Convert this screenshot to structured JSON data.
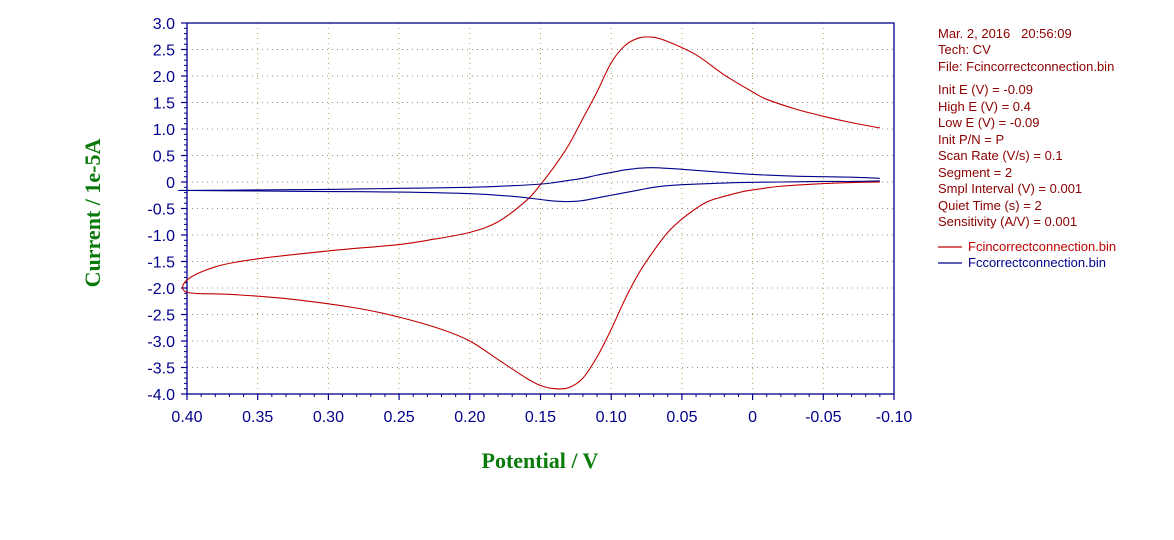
{
  "info": {
    "lines_top": [
      "Mar. 2, 2016   20:56:09",
      "Tech: CV",
      "File: Fcincorrectconnection.bin"
    ],
    "lines_params": [
      "Init E (V) = -0.09",
      "High E (V) = 0.4",
      "Low E (V) = -0.09",
      "Init P/N = P",
      "Scan Rate (V/s) = 0.1",
      "Segment = 2",
      "Smpl Interval (V) = 0.001",
      "Quiet Time (s) = 2",
      "Sensitivity (A/V) = 0.001"
    ]
  },
  "colors": {
    "axis": "#00008b",
    "grid": "#c8a060",
    "title": "#0a7a0a",
    "info": "#8b0000",
    "series_red": "#c00000",
    "series_blue": "#00008b"
  },
  "chart_data": {
    "type": "line",
    "xlabel": "Potential / V",
    "ylabel": "Current / 1e-5A",
    "xlim": [
      0.4,
      -0.1
    ],
    "ylim": [
      -4.0,
      3.0
    ],
    "x_inverted": true,
    "grid": true,
    "legend_position": "right",
    "x_ticks": [
      "0.40",
      "0.35",
      "0.30",
      "0.25",
      "0.20",
      "0.15",
      "0.10",
      "0.05",
      "0",
      "-0.05",
      "-0.10"
    ],
    "x_tick_values": [
      0.4,
      0.35,
      0.3,
      0.25,
      0.2,
      0.15,
      0.1,
      0.05,
      0,
      -0.05,
      -0.1
    ],
    "y_ticks": [
      "3.0",
      "2.5",
      "2.0",
      "1.5",
      "1.0",
      "0.5",
      "0",
      "-0.5",
      "-1.0",
      "-1.5",
      "-2.0",
      "-2.5",
      "-3.0",
      "-3.5",
      "-4.0"
    ],
    "y_tick_values": [
      3.0,
      2.5,
      2.0,
      1.5,
      1.0,
      0.5,
      0,
      -0.5,
      -1.0,
      -1.5,
      -2.0,
      -2.5,
      -3.0,
      -3.5,
      -4.0
    ],
    "series": [
      {
        "name": "Fcincorrectconnection.bin",
        "color": "#c00000",
        "points": [
          [
            -0.09,
            1.02
          ],
          [
            -0.07,
            1.12
          ],
          [
            -0.05,
            1.24
          ],
          [
            -0.03,
            1.38
          ],
          [
            -0.01,
            1.56
          ],
          [
            0.0,
            1.7
          ],
          [
            0.02,
            2.02
          ],
          [
            0.04,
            2.4
          ],
          [
            0.06,
            2.65
          ],
          [
            0.07,
            2.73
          ],
          [
            0.08,
            2.72
          ],
          [
            0.09,
            2.58
          ],
          [
            0.1,
            2.25
          ],
          [
            0.11,
            1.7
          ],
          [
            0.12,
            1.2
          ],
          [
            0.13,
            0.7
          ],
          [
            0.14,
            0.3
          ],
          [
            0.15,
            -0.05
          ],
          [
            0.16,
            -0.35
          ],
          [
            0.18,
            -0.75
          ],
          [
            0.2,
            -0.95
          ],
          [
            0.23,
            -1.1
          ],
          [
            0.25,
            -1.18
          ],
          [
            0.3,
            -1.3
          ],
          [
            0.35,
            -1.45
          ],
          [
            0.38,
            -1.6
          ],
          [
            0.4,
            -1.85
          ],
          [
            0.4,
            -2.08
          ],
          [
            0.37,
            -2.12
          ],
          [
            0.33,
            -2.2
          ],
          [
            0.28,
            -2.38
          ],
          [
            0.25,
            -2.55
          ],
          [
            0.22,
            -2.78
          ],
          [
            0.2,
            -3.0
          ],
          [
            0.18,
            -3.35
          ],
          [
            0.16,
            -3.7
          ],
          [
            0.15,
            -3.84
          ],
          [
            0.14,
            -3.9
          ],
          [
            0.13,
            -3.88
          ],
          [
            0.12,
            -3.7
          ],
          [
            0.11,
            -3.3
          ],
          [
            0.1,
            -2.78
          ],
          [
            0.09,
            -2.2
          ],
          [
            0.08,
            -1.7
          ],
          [
            0.07,
            -1.3
          ],
          [
            0.06,
            -0.95
          ],
          [
            0.05,
            -0.7
          ],
          [
            0.04,
            -0.5
          ],
          [
            0.03,
            -0.35
          ],
          [
            0.01,
            -0.2
          ],
          [
            0.0,
            -0.15
          ],
          [
            -0.02,
            -0.08
          ],
          [
            -0.05,
            -0.03
          ],
          [
            -0.07,
            -0.01
          ],
          [
            -0.09,
            0.0
          ]
        ]
      },
      {
        "name": "Fccorrectconnection.bin",
        "color": "#00008b",
        "points": [
          [
            -0.09,
            0.07
          ],
          [
            -0.07,
            0.09
          ],
          [
            -0.05,
            0.1
          ],
          [
            -0.03,
            0.11
          ],
          [
            -0.01,
            0.13
          ],
          [
            0.01,
            0.16
          ],
          [
            0.03,
            0.2
          ],
          [
            0.05,
            0.24
          ],
          [
            0.07,
            0.27
          ],
          [
            0.08,
            0.26
          ],
          [
            0.09,
            0.23
          ],
          [
            0.1,
            0.18
          ],
          [
            0.11,
            0.13
          ],
          [
            0.12,
            0.07
          ],
          [
            0.13,
            0.03
          ],
          [
            0.14,
            -0.01
          ],
          [
            0.15,
            -0.04
          ],
          [
            0.17,
            -0.07
          ],
          [
            0.2,
            -0.1
          ],
          [
            0.25,
            -0.12
          ],
          [
            0.3,
            -0.14
          ],
          [
            0.35,
            -0.15
          ],
          [
            0.4,
            -0.16
          ],
          [
            0.4,
            -0.16
          ],
          [
            0.35,
            -0.17
          ],
          [
            0.3,
            -0.18
          ],
          [
            0.25,
            -0.19
          ],
          [
            0.2,
            -0.22
          ],
          [
            0.17,
            -0.27
          ],
          [
            0.15,
            -0.33
          ],
          [
            0.14,
            -0.36
          ],
          [
            0.13,
            -0.37
          ],
          [
            0.12,
            -0.35
          ],
          [
            0.11,
            -0.3
          ],
          [
            0.1,
            -0.25
          ],
          [
            0.09,
            -0.2
          ],
          [
            0.08,
            -0.15
          ],
          [
            0.07,
            -0.1
          ],
          [
            0.06,
            -0.07
          ],
          [
            0.05,
            -0.05
          ],
          [
            0.03,
            -0.03
          ],
          [
            0.01,
            -0.01
          ],
          [
            -0.02,
            0.0
          ],
          [
            -0.05,
            0.01
          ],
          [
            -0.07,
            0.01
          ],
          [
            -0.09,
            0.02
          ]
        ]
      }
    ]
  }
}
